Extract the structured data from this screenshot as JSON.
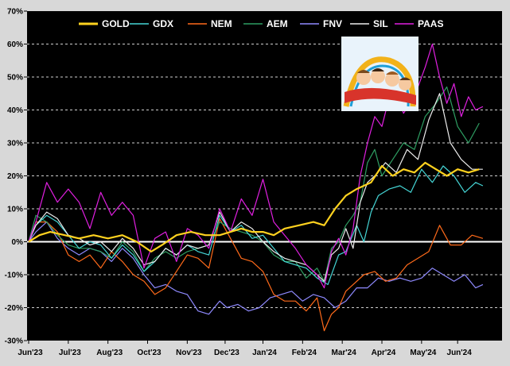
{
  "chart_data": {
    "type": "line",
    "title": "",
    "xlabel": "",
    "ylabel": "",
    "ylim": [
      -30,
      70
    ],
    "y_ticks": [
      -30,
      -20,
      -10,
      0,
      10,
      20,
      30,
      40,
      50,
      60,
      70
    ],
    "y_tick_labels": [
      "-30%",
      "-20%",
      "-10%",
      "0%",
      "10%",
      "20%",
      "30%",
      "40%",
      "50%",
      "60%",
      "70%"
    ],
    "x_range": [
      0,
      260
    ],
    "x_ticks": [
      0,
      22,
      44,
      66,
      88,
      109,
      130,
      152,
      174,
      196,
      218,
      238
    ],
    "x_tick_labels": [
      "Jun'23",
      "Jul'23",
      "Aug'23",
      "Oct'23",
      "Nov'23",
      "Dec'23",
      "Jan'24",
      "Feb'24",
      "Mar'24",
      "Apr'24",
      "May'24",
      "Jun'24"
    ],
    "grid": "horizontal dashed",
    "legend_position": "top",
    "background": "#000000",
    "zero_line_color": "#ffffff",
    "inset_image": "roller-coaster cartoon",
    "series": [
      {
        "name": "GOLD",
        "color": "#ffd21f",
        "x": [
          0,
          6,
          12,
          20,
          28,
          36,
          44,
          52,
          60,
          68,
          74,
          82,
          90,
          98,
          106,
          112,
          118,
          124,
          130,
          136,
          142,
          150,
          158,
          164,
          170,
          176,
          182,
          190,
          196,
          202,
          208,
          214,
          220,
          226,
          232,
          238,
          244,
          250
        ],
        "y": [
          0,
          2,
          3,
          2,
          1,
          2,
          1,
          2,
          0,
          -3,
          -1,
          2,
          3,
          2,
          2,
          3,
          4,
          3,
          3,
          2,
          4,
          5,
          6,
          5,
          10,
          14,
          16,
          18,
          23,
          20,
          22,
          21,
          24,
          22,
          20,
          22,
          21,
          22
        ]
      },
      {
        "name": "GDX",
        "color": "#45d6d6",
        "x": [
          0,
          4,
          10,
          16,
          22,
          28,
          34,
          40,
          46,
          52,
          58,
          64,
          70,
          76,
          82,
          88,
          94,
          100,
          106,
          112,
          118,
          124,
          130,
          136,
          142,
          148,
          154,
          160,
          166,
          172,
          176,
          182,
          186,
          190,
          194,
          200,
          206,
          212,
          218,
          224,
          230,
          236,
          242,
          248,
          252
        ],
        "y": [
          0,
          5,
          8,
          6,
          2,
          -2,
          0,
          -1,
          -5,
          -1,
          -4,
          -9,
          -6,
          -2,
          -4,
          -1,
          -3,
          -4,
          8,
          3,
          5,
          1,
          2,
          -2,
          -6,
          -7,
          -8,
          -11,
          -13,
          -4,
          -3,
          5,
          0,
          9,
          14,
          16,
          17,
          15,
          22,
          18,
          23,
          20,
          15,
          18,
          17
        ]
      },
      {
        "name": "NEM",
        "color": "#ff6a1a",
        "x": [
          0,
          4,
          10,
          16,
          22,
          28,
          34,
          40,
          46,
          52,
          58,
          64,
          70,
          76,
          82,
          88,
          94,
          100,
          106,
          112,
          118,
          124,
          130,
          136,
          142,
          148,
          154,
          160,
          164,
          168,
          172,
          176,
          180,
          186,
          192,
          198,
          204,
          210,
          216,
          222,
          228,
          234,
          240,
          246,
          252
        ],
        "y": [
          0,
          6,
          6,
          3,
          -4,
          -6,
          -4,
          -8,
          -3,
          -6,
          -10,
          -12,
          -16,
          -14,
          -9,
          -4,
          -5,
          -8,
          7,
          1,
          -5,
          -6,
          -9,
          -16,
          -18,
          -18,
          -21,
          -17,
          -27,
          -22,
          -20,
          -15,
          -13,
          -10,
          -9,
          -12,
          -11,
          -7,
          -5,
          -3,
          5,
          -1,
          -1,
          2,
          1
        ]
      },
      {
        "name": "AEM",
        "color": "#2e9e62",
        "x": [
          0,
          4,
          10,
          16,
          22,
          28,
          34,
          40,
          46,
          52,
          58,
          64,
          70,
          76,
          82,
          88,
          94,
          100,
          106,
          112,
          118,
          124,
          130,
          136,
          142,
          148,
          154,
          160,
          164,
          168,
          172,
          176,
          180,
          184,
          188,
          192,
          196,
          202,
          208,
          214,
          220,
          226,
          232,
          238,
          244,
          250
        ],
        "y": [
          0,
          8,
          6,
          2,
          -1,
          -2,
          -2,
          -3,
          -5,
          0,
          -3,
          -9,
          -5,
          -3,
          -5,
          -3,
          -2,
          -1,
          6,
          4,
          3,
          2,
          0,
          -4,
          -6,
          -6,
          -11,
          -8,
          -12,
          -2,
          0,
          5,
          8,
          12,
          24,
          28,
          20,
          25,
          30,
          28,
          38,
          42,
          47,
          35,
          30,
          36
        ]
      },
      {
        "name": "FNV",
        "color": "#8f8aff",
        "x": [
          0,
          4,
          10,
          16,
          22,
          28,
          34,
          40,
          46,
          52,
          58,
          64,
          70,
          76,
          82,
          88,
          94,
          100,
          106,
          110,
          116,
          122,
          128,
          134,
          140,
          146,
          152,
          158,
          164,
          170,
          176,
          182,
          188,
          194,
          200,
          206,
          212,
          218,
          224,
          230,
          236,
          242,
          248,
          252
        ],
        "y": [
          0,
          3,
          6,
          1,
          -2,
          -4,
          -2,
          -3,
          -6,
          -2,
          -5,
          -10,
          -14,
          -13,
          -15,
          -16,
          -21,
          -22,
          -18,
          -20,
          -19,
          -21,
          -20,
          -17,
          -16,
          -15,
          -18,
          -16,
          -17,
          -20,
          -18,
          -14,
          -14,
          -11,
          -12,
          -11,
          -12,
          -11,
          -8,
          -10,
          -12,
          -10,
          -14,
          -13
        ]
      },
      {
        "name": "SIL",
        "color": "#ededed",
        "x": [
          0,
          4,
          10,
          16,
          22,
          28,
          34,
          40,
          46,
          52,
          58,
          64,
          70,
          76,
          82,
          88,
          94,
          100,
          106,
          112,
          118,
          124,
          130,
          136,
          142,
          148,
          154,
          160,
          164,
          168,
          172,
          176,
          180,
          184,
          188,
          192,
          198,
          204,
          210,
          216,
          222,
          228,
          234,
          240,
          246,
          252
        ],
        "y": [
          0,
          5,
          9,
          7,
          2,
          1,
          -1,
          0,
          -3,
          1,
          -2,
          -7,
          -6,
          -2,
          -4,
          -1,
          -2,
          -1,
          9,
          3,
          6,
          4,
          0,
          -3,
          -5,
          -6,
          -7,
          -10,
          -12,
          -4,
          -2,
          4,
          -2,
          12,
          18,
          20,
          24,
          21,
          28,
          25,
          37,
          45,
          30,
          25,
          22,
          22
        ]
      },
      {
        "name": "PAAS",
        "color": "#e01fe0",
        "x": [
          0,
          4,
          10,
          16,
          22,
          28,
          34,
          40,
          46,
          52,
          58,
          64,
          70,
          76,
          82,
          88,
          94,
          100,
          106,
          112,
          118,
          124,
          130,
          136,
          142,
          148,
          154,
          160,
          164,
          168,
          172,
          176,
          180,
          184,
          188,
          192,
          196,
          202,
          208,
          214,
          220,
          224,
          228,
          232,
          236,
          240,
          244,
          248,
          252
        ],
        "y": [
          0,
          6,
          18,
          12,
          16,
          12,
          4,
          15,
          8,
          12,
          8,
          -8,
          1,
          3,
          -6,
          4,
          2,
          -2,
          10,
          3,
          13,
          8,
          19,
          6,
          2,
          -2,
          -7,
          -10,
          -14,
          -3,
          1,
          -4,
          4,
          20,
          30,
          38,
          35,
          48,
          39,
          44,
          53,
          60,
          50,
          42,
          48,
          38,
          44,
          40,
          41
        ]
      }
    ]
  }
}
